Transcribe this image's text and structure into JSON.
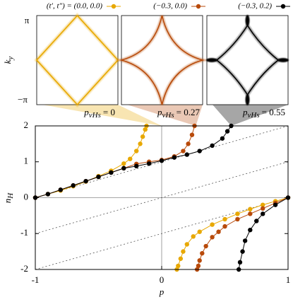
{
  "chart_data": {
    "type": "scatter",
    "xlabel": "p",
    "ylabel": "n",
    "ylabel_sub": "H",
    "xlim": [
      -1,
      1
    ],
    "ylim": [
      -2,
      2
    ],
    "xticks": [
      -1,
      0,
      1
    ],
    "yticks": [
      -2,
      -1,
      0,
      1,
      2
    ],
    "series": [
      {
        "name": "(t′, t″) = (0.0, 0.0)",
        "color": "#e8a800",
        "x": [
          -1,
          -0.9,
          -0.8,
          -0.7,
          -0.6,
          -0.5,
          -0.4,
          -0.3,
          -0.25,
          -0.2,
          -0.17,
          -0.15,
          -0.13,
          -0.12,
          null,
          1,
          0.9,
          0.8,
          0.7,
          0.6,
          0.5,
          0.4,
          0.3,
          0.25,
          0.2,
          0.17,
          0.15,
          0.13,
          0.12
        ],
        "values": [
          0,
          0.1,
          0.2,
          0.32,
          0.45,
          0.6,
          0.75,
          0.95,
          1.08,
          1.3,
          1.5,
          1.7,
          1.9,
          2.0,
          null,
          0,
          -0.1,
          -0.2,
          -0.32,
          -0.45,
          -0.6,
          -0.75,
          -0.95,
          -1.08,
          -1.3,
          -1.5,
          -1.7,
          -1.9,
          -2.0
        ]
      },
      {
        "name": "(−0.3, 0.0)",
        "color": "#b84a0a",
        "x": [
          -1,
          -0.9,
          -0.8,
          -0.7,
          -0.6,
          -0.5,
          -0.4,
          -0.3,
          -0.2,
          -0.1,
          0,
          0.1,
          0.17,
          0.21,
          0.24,
          0.26,
          null,
          1,
          0.9,
          0.8,
          0.7,
          0.6,
          0.5,
          0.45,
          0.4,
          0.35,
          0.32,
          0.3,
          0.29,
          0.28
        ],
        "values": [
          0,
          0.1,
          0.22,
          0.34,
          0.46,
          0.58,
          0.7,
          0.82,
          0.94,
          1.0,
          1.05,
          1.15,
          1.3,
          1.5,
          1.75,
          2.0,
          null,
          0,
          -0.15,
          -0.3,
          -0.45,
          -0.6,
          -0.8,
          -0.95,
          -1.1,
          -1.35,
          -1.55,
          -1.75,
          -1.9,
          -2.0
        ]
      },
      {
        "name": "(−0.3, 0.2)",
        "color": "#000000",
        "x": [
          -1,
          -0.9,
          -0.8,
          -0.7,
          -0.6,
          -0.5,
          -0.4,
          -0.3,
          -0.2,
          -0.1,
          0,
          0.1,
          0.2,
          0.3,
          0.4,
          0.48,
          0.52,
          0.55,
          null,
          1,
          0.9,
          0.8,
          0.75,
          0.7,
          0.66,
          0.64,
          0.62,
          0.61
        ],
        "values": [
          0,
          0.1,
          0.22,
          0.34,
          0.46,
          0.58,
          0.7,
          0.82,
          0.88,
          0.95,
          1.03,
          1.12,
          1.2,
          1.3,
          1.45,
          1.65,
          1.85,
          2.0,
          null,
          0,
          -0.2,
          -0.45,
          -0.65,
          -0.9,
          -1.2,
          -1.5,
          -1.8,
          -2.0
        ]
      }
    ],
    "guides": [
      {
        "x": [
          -1,
          1
        ],
        "values": [
          0,
          2
        ]
      },
      {
        "x": [
          -1,
          1
        ],
        "values": [
          -1,
          1
        ]
      },
      {
        "x": [
          -1,
          1
        ],
        "values": [
          -2,
          0
        ]
      }
    ]
  },
  "insets": {
    "ylabel": "k",
    "ylabel_sub": "y",
    "ytick_labels": [
      "π",
      "−π"
    ],
    "panels": [
      {
        "color": "#e8a800",
        "symbol": "p",
        "sub": "vHs",
        "label": "= 0",
        "value": 0
      },
      {
        "color": "#b84a0a",
        "symbol": "p",
        "sub": "vHs",
        "label": "= 0.27",
        "value": 0.27
      },
      {
        "color": "#000000",
        "symbol": "p",
        "sub": "vHs",
        "label": "= 0.55",
        "value": 0.55
      }
    ]
  }
}
